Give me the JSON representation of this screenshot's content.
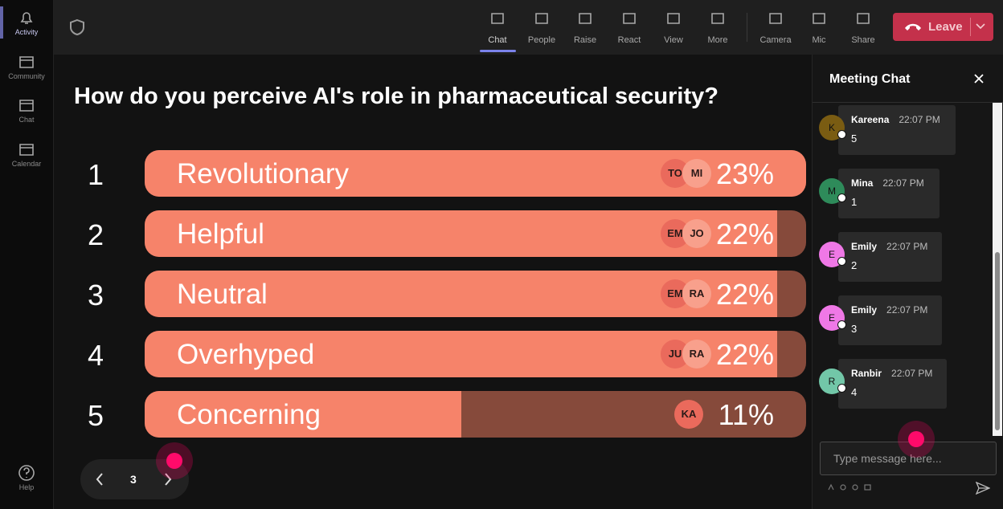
{
  "sidebar": {
    "items": [
      "Activity",
      "Community",
      "Chat",
      "Calendar"
    ],
    "help": "Help"
  },
  "toolbar": {
    "items": [
      "Chat",
      "People",
      "Raise",
      "React",
      "View",
      "More",
      "Camera",
      "Mic",
      "Share"
    ],
    "leave": "Leave"
  },
  "poll": {
    "question": "How do you perceive AI's role in pharmaceutical security?",
    "options": [
      {
        "rank": 1,
        "label": "Revolutionary",
        "voters": [
          "TO",
          "MI"
        ],
        "value": 23,
        "value_label": "23%"
      },
      {
        "rank": 2,
        "label": "Helpful",
        "voters": [
          "EM",
          "JO"
        ],
        "value": 22,
        "value_label": "22%"
      },
      {
        "rank": 3,
        "label": "Neutral",
        "voters": [
          "EM",
          "RA"
        ],
        "value": 22,
        "value_label": "22%"
      },
      {
        "rank": 4,
        "label": "Overhyped",
        "voters": [
          "JU",
          "RA"
        ],
        "value": 22,
        "value_label": "22%"
      },
      {
        "rank": 5,
        "label": "Concerning",
        "voters": [
          "KA"
        ],
        "value": 11,
        "value_label": "11%"
      }
    ]
  },
  "pager": {
    "page": 3
  },
  "chat": {
    "title": "Meeting Chat",
    "messages": [
      {
        "initial": "K",
        "name": "Kareena",
        "time": "22:07 PM",
        "text": "5",
        "color": "#7a5c12"
      },
      {
        "initial": "M",
        "name": "Mina",
        "time": "22:07 PM",
        "text": "1",
        "color": "#2e8b5a"
      },
      {
        "initial": "E",
        "name": "Emily",
        "time": "22:07 PM",
        "text": "2",
        "color": "#ef78e6"
      },
      {
        "initial": "E",
        "name": "Emily",
        "time": "22:07 PM",
        "text": "3",
        "color": "#ef78e6"
      },
      {
        "initial": "R",
        "name": "Ranbir",
        "time": "22:07 PM",
        "text": "4",
        "color": "#72c7a8"
      }
    ],
    "placeholder": "Type message here..."
  }
}
